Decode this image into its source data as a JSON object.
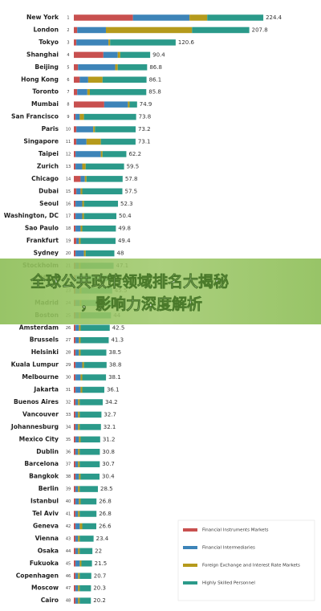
{
  "chart_data": {
    "type": "stacked-bar-horizontal",
    "title_lines": [
      "全球公共政策领域排名大揭秘",
      "，影响力深度解析"
    ],
    "categories": [
      "New York",
      "London",
      "Tokyo",
      "Shanghai",
      "Beijing",
      "Hong Kong",
      "Toronto",
      "Mumbai",
      "San Francisco",
      "Paris",
      "Singapore",
      "Taipei",
      "Zurich",
      "Chicago",
      "Dubai",
      "Seoul",
      "Washington, DC",
      "Sao Paulo",
      "Frankfurt",
      "Sydney",
      "Stockholm",
      "Milan",
      null,
      "Madrid",
      "Boston",
      "Amsterdam",
      "Brussels",
      "Helsinki",
      "Kuala Lumpur",
      "Melbourne",
      "Jakarta",
      "Buenos Aires",
      "Vancouver",
      "Johannesburg",
      "Mexico City",
      "Dublin",
      "Barcelona",
      "Bangkok",
      "Berlin",
      "Istanbul",
      "Tel Aviv",
      "Geneva",
      "Vienna",
      "Osaka",
      "Fukuoka",
      "Copenhagen",
      "Moscow",
      "Cairo"
    ],
    "ranks": [
      1,
      2,
      3,
      4,
      5,
      6,
      7,
      8,
      9,
      10,
      11,
      12,
      13,
      14,
      15,
      16,
      17,
      18,
      19,
      20,
      21,
      22,
      23,
      24,
      25,
      26,
      27,
      28,
      29,
      30,
      31,
      32,
      33,
      34,
      35,
      36,
      37,
      38,
      39,
      40,
      41,
      42,
      43,
      44,
      45,
      46,
      47,
      48
    ],
    "totals": [
      224.4,
      207.8,
      120.6,
      90.4,
      86.8,
      86.1,
      85.8,
      74.9,
      73.8,
      73.2,
      73.1,
      62.2,
      59.5,
      57.8,
      57.5,
      52.3,
      50.4,
      49.8,
      49.4,
      48.0,
      47.1,
      46.1,
      45.5,
      45.0,
      44.0,
      42.5,
      41.3,
      38.5,
      38.8,
      38.1,
      36.1,
      34.2,
      32.7,
      32.1,
      31.2,
      30.8,
      30.7,
      30.4,
      28.5,
      26.8,
      26.8,
      26.6,
      23.4,
      22.0,
      21.5,
      20.7,
      20.3,
      20.2
    ],
    "series": [
      {
        "name": "Financial Instruments Markets",
        "color": "#c8504f",
        "values": [
          70,
          4,
          3,
          35,
          5,
          7,
          4,
          36,
          2,
          3,
          3,
          2,
          2,
          8,
          3,
          2,
          2,
          2,
          3,
          2,
          2,
          2,
          2,
          2,
          2,
          2,
          2,
          2,
          2,
          2,
          2,
          2,
          2,
          2,
          2,
          2,
          2,
          2,
          2,
          2,
          2,
          2,
          2,
          2,
          2,
          2,
          2,
          2
        ]
      },
      {
        "name": "Financial Intermediaries",
        "color": "#3d84b8",
        "values": [
          67,
          34,
          38,
          17,
          44,
          10,
          12,
          28,
          5,
          20,
          12,
          30,
          8,
          5,
          5,
          8,
          8,
          6,
          3,
          10,
          4,
          6,
          5,
          5,
          4,
          4,
          4,
          4,
          8,
          6,
          6,
          3,
          3,
          3,
          4,
          3,
          3,
          4,
          3,
          4,
          3,
          5,
          3,
          3,
          5,
          3,
          3,
          3
        ]
      },
      {
        "name": "Foreign Exchange and Interest Rate Markets",
        "color": "#b59a1c",
        "values": [
          21,
          102,
          2,
          3,
          3,
          17,
          3,
          2,
          5,
          2,
          17,
          2,
          4,
          2,
          2,
          2,
          2,
          2,
          2,
          2,
          2,
          2,
          2,
          2,
          2,
          2,
          2,
          2,
          2,
          2,
          2,
          2,
          2,
          2,
          2,
          2,
          2,
          2,
          2,
          2,
          2,
          3,
          2,
          2,
          2,
          2,
          2,
          2
        ]
      },
      {
        "name": "Highly Skilled Personnel",
        "color": "#2b9a8a",
        "values": [
          66.4,
          67.8,
          77.6,
          35.4,
          34.8,
          52.1,
          66.8,
          8.9,
          61.8,
          48.2,
          41.1,
          28.2,
          45.5,
          42.8,
          47.5,
          40.3,
          38.4,
          39.8,
          41.4,
          34.0,
          39.1,
          36.1,
          36.5,
          36.0,
          36.0,
          34.5,
          33.3,
          30.5,
          26.8,
          28.1,
          26.1,
          27.2,
          25.7,
          25.1,
          23.2,
          23.8,
          23.7,
          22.4,
          21.5,
          18.8,
          19.8,
          16.6,
          16.4,
          15.0,
          12.5,
          13.7,
          13.3,
          13.2
        ]
      }
    ],
    "xlim": [
      0,
      230
    ]
  }
}
